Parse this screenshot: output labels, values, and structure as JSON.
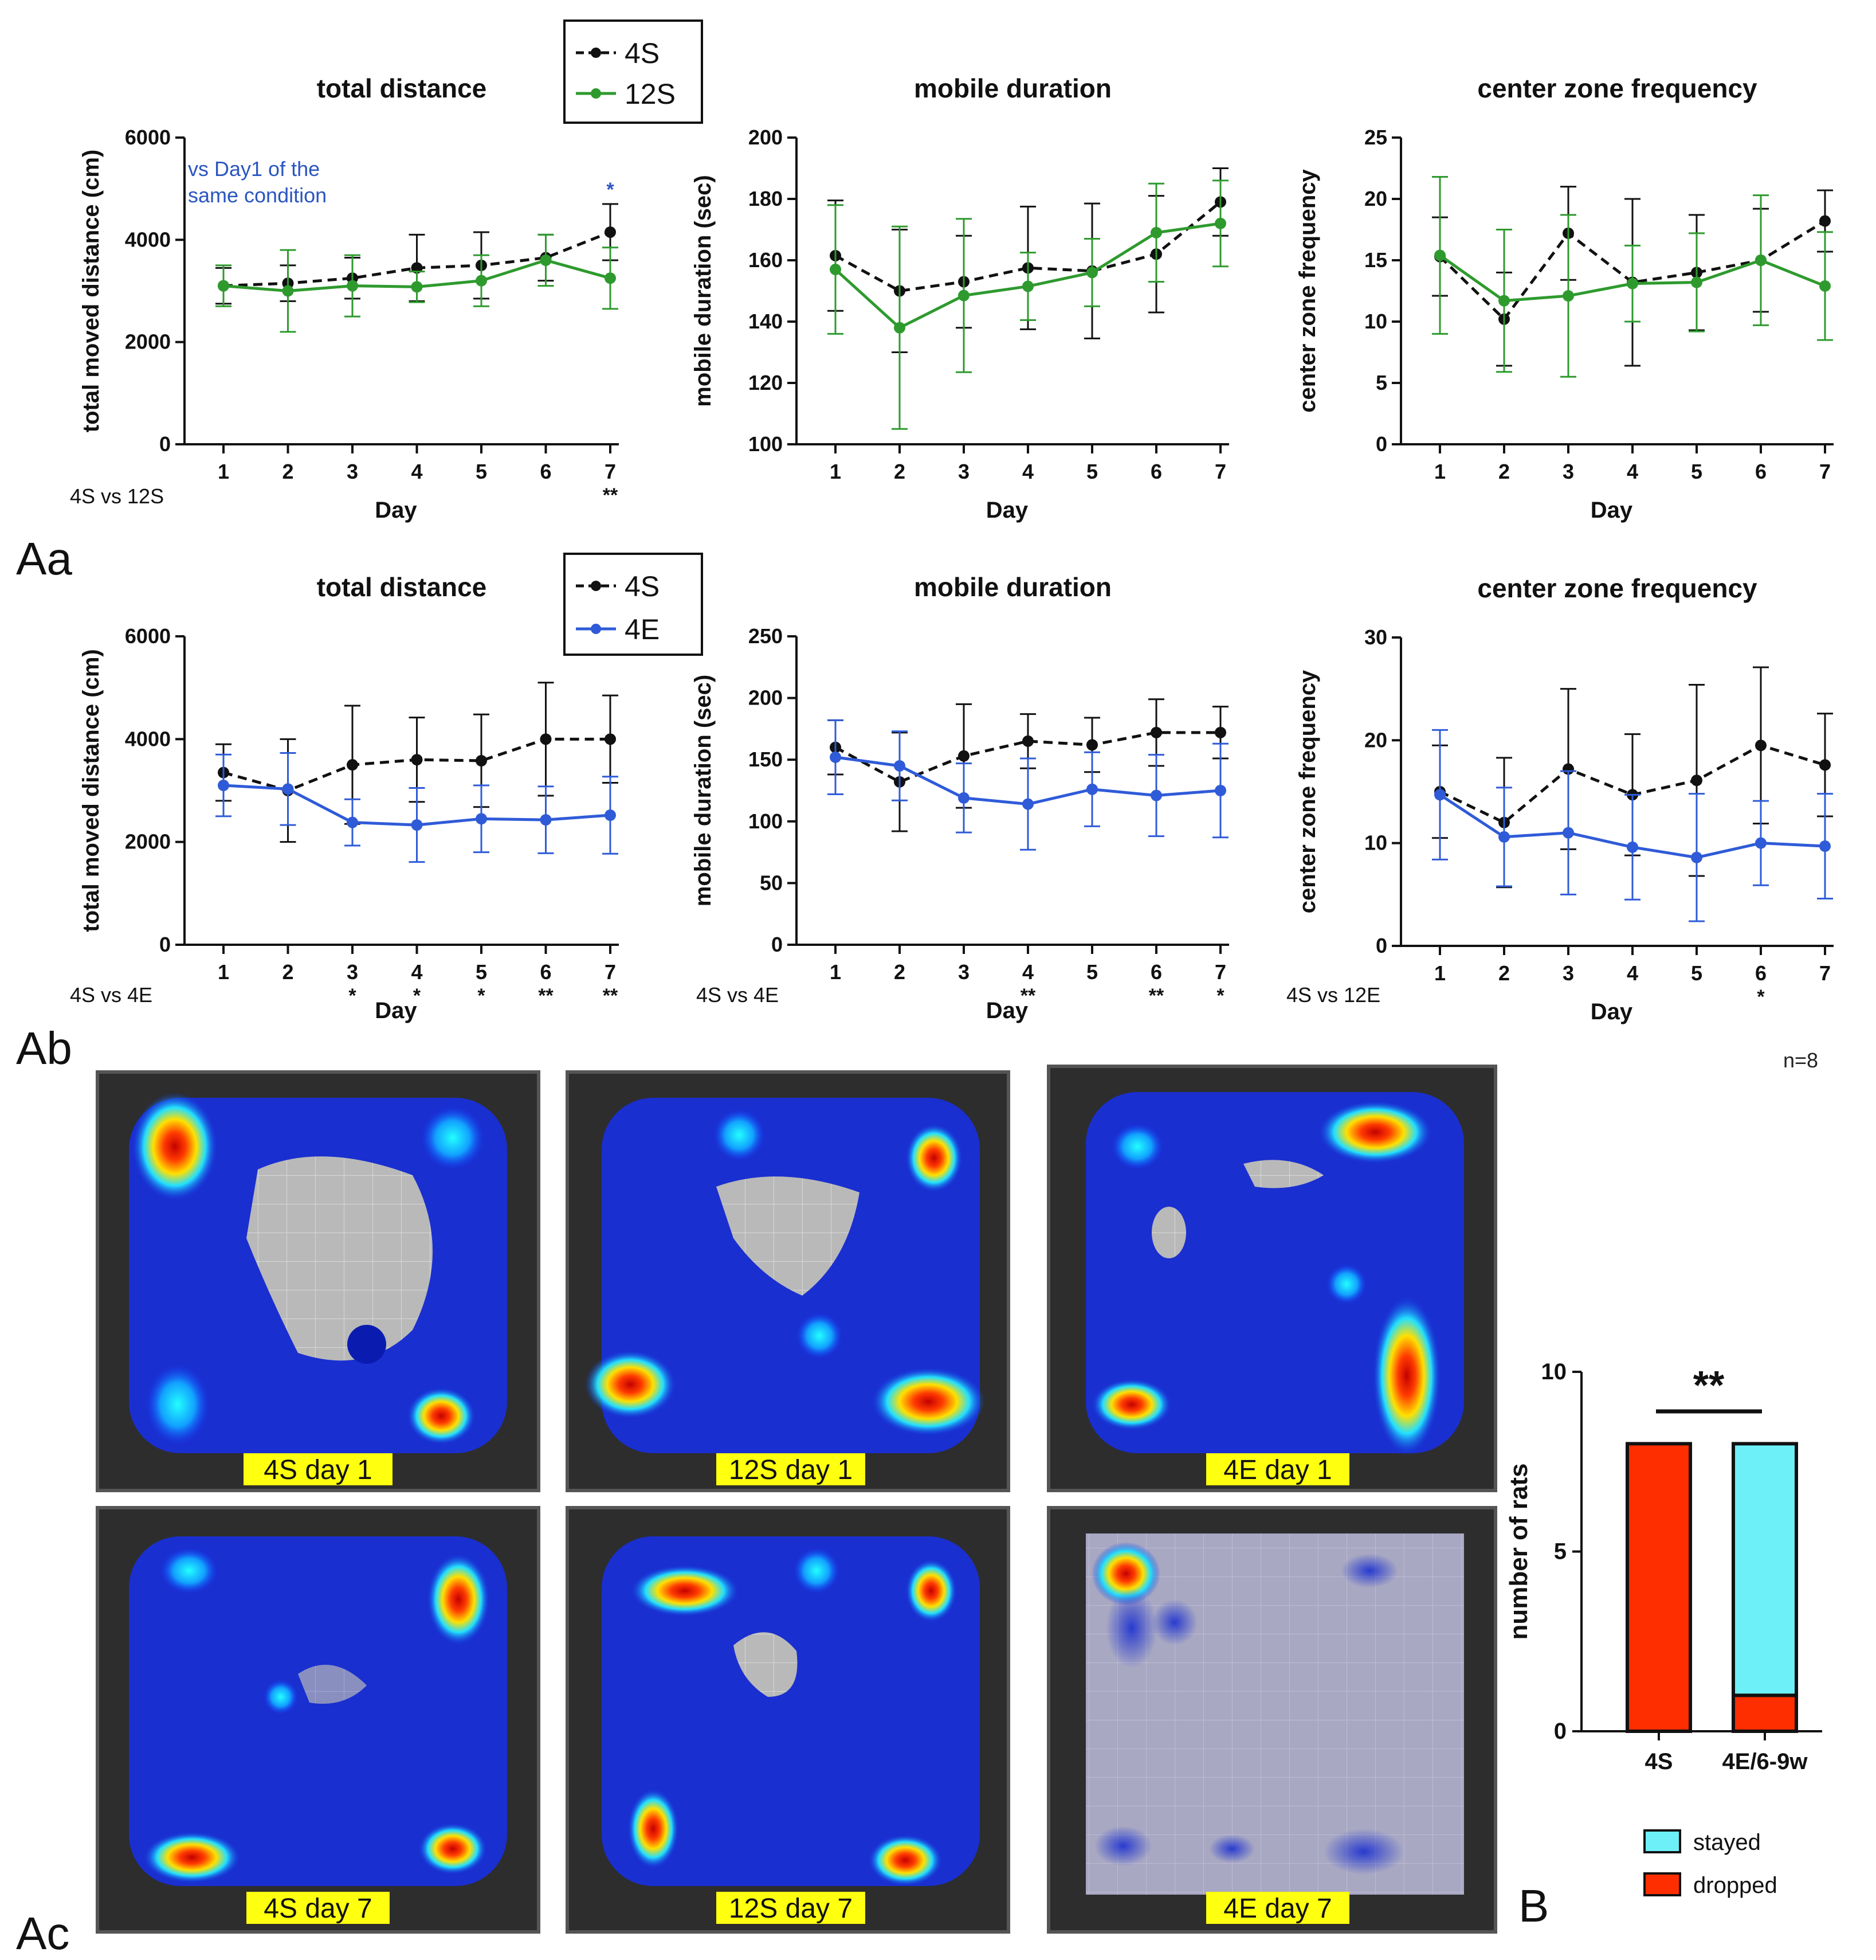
{
  "panels": {
    "Aa": {
      "label": "Aa",
      "legend": [
        {
          "name": "4S",
          "color": "#111111",
          "dashed": true
        },
        {
          "name": "12S",
          "color": "#2e9a2e",
          "dashed": false
        }
      ],
      "compare_label": "4S vs 12S",
      "annotation": {
        "line1": "vs Day1 of the",
        "line2": "same condition",
        "color": "#2b56c0"
      }
    },
    "Ab": {
      "label": "Ab",
      "legend": [
        {
          "name": "4S",
          "color": "#111111",
          "dashed": true
        },
        {
          "name": "4E",
          "color": "#2f5bd8",
          "dashed": false
        }
      ],
      "compare_labels": [
        "4S vs 4E",
        "4S vs 4E",
        "4S vs 12E"
      ]
    },
    "Ac": {
      "label": "Ac",
      "n_label": "n=8",
      "heatmaps": [
        {
          "caption": "4S day 1"
        },
        {
          "caption": "12S day 1"
        },
        {
          "caption": "4E day 1"
        },
        {
          "caption": "4S day 7"
        },
        {
          "caption": "12S day 7"
        },
        {
          "caption": "4E day 7"
        }
      ]
    },
    "B": {
      "label": "B"
    }
  },
  "chart_data": [
    {
      "id": "Aa-1",
      "type": "line",
      "title": "total distance",
      "xlabel": "Day",
      "ylabel": "total moved distance (cm)",
      "x": [
        1,
        2,
        3,
        4,
        5,
        6,
        7
      ],
      "ylim": [
        0,
        6000
      ],
      "yticks": [
        0,
        2000,
        4000,
        6000
      ],
      "series": [
        {
          "name": "4S",
          "color": "#111111",
          "dashed": true,
          "values": [
            3100,
            3150,
            3250,
            3450,
            3500,
            3650,
            4150
          ],
          "err": [
            350,
            350,
            400,
            650,
            650,
            450,
            550
          ]
        },
        {
          "name": "12S",
          "color": "#2e9a2e",
          "dashed": false,
          "values": [
            3100,
            3000,
            3100,
            3080,
            3200,
            3600,
            3250
          ],
          "err": [
            400,
            800,
            600,
            300,
            500,
            500,
            600
          ]
        }
      ],
      "significance": [
        "",
        "",
        "",
        "",
        "",
        "",
        "**"
      ],
      "top_marks": [
        {
          "x": 7,
          "text": "*",
          "color": "#2b56c0"
        }
      ]
    },
    {
      "id": "Aa-2",
      "type": "line",
      "title": "mobile duration",
      "xlabel": "Day",
      "ylabel": "mobile duration (sec)",
      "x": [
        1,
        2,
        3,
        4,
        5,
        6,
        7
      ],
      "ylim": [
        100,
        200
      ],
      "yticks": [
        100,
        120,
        140,
        160,
        180,
        200
      ],
      "series": [
        {
          "name": "4S",
          "color": "#111111",
          "dashed": true,
          "values": [
            161.5,
            150,
            153,
            157.5,
            156.5,
            162,
            179
          ],
          "err": [
            18,
            20,
            15,
            20,
            22,
            19,
            11
          ]
        },
        {
          "name": "12S",
          "color": "#2e9a2e",
          "dashed": false,
          "values": [
            157,
            138,
            148.5,
            151.5,
            156,
            169,
            172
          ],
          "err": [
            21,
            33,
            25,
            11,
            11,
            16,
            14
          ]
        }
      ],
      "significance": [
        "",
        "",
        "",
        "",
        "",
        "",
        ""
      ]
    },
    {
      "id": "Aa-3",
      "type": "line",
      "title": "center zone frequency",
      "xlabel": "Day",
      "ylabel": "center zone frequency",
      "x": [
        1,
        2,
        3,
        4,
        5,
        6,
        7
      ],
      "ylim": [
        0,
        25
      ],
      "yticks": [
        0,
        5,
        10,
        15,
        20,
        25
      ],
      "series": [
        {
          "name": "4S",
          "color": "#111111",
          "dashed": true,
          "values": [
            15.3,
            10.2,
            17.2,
            13.2,
            14,
            15,
            18.2
          ],
          "err": [
            3.2,
            3.8,
            3.8,
            6.8,
            4.7,
            4.2,
            2.5
          ]
        },
        {
          "name": "12S",
          "color": "#2e9a2e",
          "dashed": false,
          "values": [
            15.4,
            11.7,
            12.1,
            13.1,
            13.2,
            15,
            12.9
          ],
          "err": [
            6.4,
            5.8,
            6.6,
            3.1,
            4,
            5.3,
            4.4
          ]
        }
      ],
      "significance": [
        "",
        "",
        "",
        "",
        "",
        "",
        ""
      ]
    },
    {
      "id": "Ab-1",
      "type": "line",
      "title": "total distance",
      "xlabel": "Day",
      "ylabel": "total moved distance (cm)",
      "x": [
        1,
        2,
        3,
        4,
        5,
        6,
        7
      ],
      "ylim": [
        0,
        6000
      ],
      "yticks": [
        0,
        2000,
        4000,
        6000
      ],
      "series": [
        {
          "name": "4S",
          "color": "#111111",
          "dashed": true,
          "values": [
            3350,
            3000,
            3500,
            3600,
            3580,
            4000,
            4000
          ],
          "err": [
            550,
            1000,
            1150,
            820,
            900,
            1100,
            850
          ]
        },
        {
          "name": "4E",
          "color": "#2f5bd8",
          "dashed": false,
          "values": [
            3100,
            3030,
            2380,
            2330,
            2450,
            2430,
            2520
          ],
          "err": [
            600,
            700,
            450,
            720,
            650,
            650,
            750
          ]
        }
      ],
      "significance": [
        "",
        "",
        "*",
        "*",
        "*",
        "**",
        "**"
      ]
    },
    {
      "id": "Ab-2",
      "type": "line",
      "title": "mobile duration",
      "xlabel": "Day",
      "ylabel": "mobile duration (sec)",
      "x": [
        1,
        2,
        3,
        4,
        5,
        6,
        7
      ],
      "ylim": [
        0,
        250
      ],
      "yticks": [
        0,
        50,
        100,
        150,
        200,
        250
      ],
      "series": [
        {
          "name": "4S",
          "color": "#111111",
          "dashed": true,
          "values": [
            160,
            132,
            153,
            165,
            162,
            172,
            172
          ],
          "err": [
            22,
            40,
            42,
            22,
            22,
            27,
            21
          ]
        },
        {
          "name": "4E",
          "color": "#2f5bd8",
          "dashed": false,
          "values": [
            152,
            145,
            119,
            114,
            126,
            121,
            125
          ],
          "err": [
            30,
            28,
            28,
            37,
            30,
            33,
            38
          ]
        }
      ],
      "significance": [
        "",
        "",
        "",
        "**",
        "",
        "**",
        "*"
      ]
    },
    {
      "id": "Ab-3",
      "type": "line",
      "title": "center zone frequency",
      "xlabel": "Day",
      "ylabel": "center zone frequency",
      "x": [
        1,
        2,
        3,
        4,
        5,
        6,
        7
      ],
      "ylim": [
        0,
        30
      ],
      "yticks": [
        0,
        10,
        20,
        30
      ],
      "series": [
        {
          "name": "4S",
          "color": "#111111",
          "dashed": true,
          "values": [
            15,
            12,
            17.2,
            14.7,
            16.1,
            19.5,
            17.6
          ],
          "err": [
            4.5,
            6.3,
            7.8,
            5.9,
            9.3,
            7.6,
            5
          ]
        },
        {
          "name": "4E",
          "color": "#2f5bd8",
          "dashed": false,
          "values": [
            14.7,
            10.6,
            11,
            9.6,
            8.6,
            10,
            9.7
          ],
          "err": [
            6.3,
            4.8,
            6,
            5.1,
            6.2,
            4.1,
            5.1
          ]
        }
      ],
      "significance": [
        "",
        "",
        "",
        "",
        "",
        "*",
        ""
      ]
    },
    {
      "id": "B",
      "type": "bar",
      "stacked": true,
      "ylabel": "number of rats",
      "ylim": [
        0,
        10
      ],
      "yticks": [
        0,
        5,
        10
      ],
      "categories": [
        "4S",
        "4E/6-9w"
      ],
      "series": [
        {
          "name": "dropped",
          "color": "#ff2e00",
          "values": [
            8,
            1
          ]
        },
        {
          "name": "stayed",
          "color": "#6ef0f8",
          "values": [
            0,
            7
          ]
        }
      ],
      "significance": "**"
    }
  ]
}
